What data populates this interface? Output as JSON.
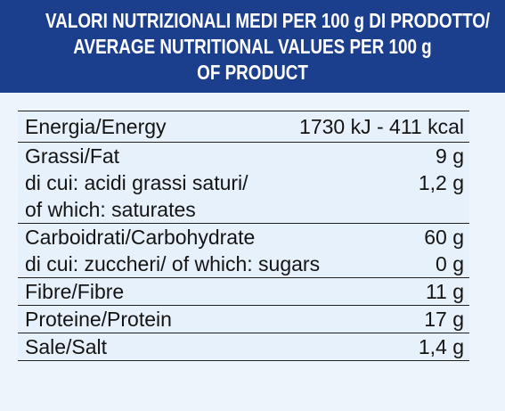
{
  "header": {
    "lines": [
      "VALORI NUTRIZIONALI MEDI PER 100 g DI PRODOTTO/",
      "AVERAGE NUTRITIONAL VALUES PER 100 g",
      "OF PRODUCT"
    ]
  },
  "energy": {
    "label": "Energia/Energy",
    "value": "1730 kJ - 411 kcal"
  },
  "fat": {
    "label": "Grassi/Fat",
    "value": "9 g",
    "saturates_label_1": "di cui: acidi grassi saturi/",
    "saturates_value": "1,2 g",
    "saturates_label_2": "of which: saturates"
  },
  "carbohydrate": {
    "label": "Carboidrati/Carbohydrate",
    "value": "60 g",
    "sugars_label": "di cui: zuccheri/ of which: sugars",
    "sugars_value": "0 g"
  },
  "fibre": {
    "label": "Fibre/Fibre",
    "value": "11 g"
  },
  "protein": {
    "label": "Proteine/Protein",
    "value": "17 g"
  },
  "salt": {
    "label": "Sale/Salt",
    "value": "1,4 g"
  },
  "colors": {
    "header_bg": "#1b3f8c",
    "panel_bg": "#eef4fb",
    "text": "#141414"
  }
}
